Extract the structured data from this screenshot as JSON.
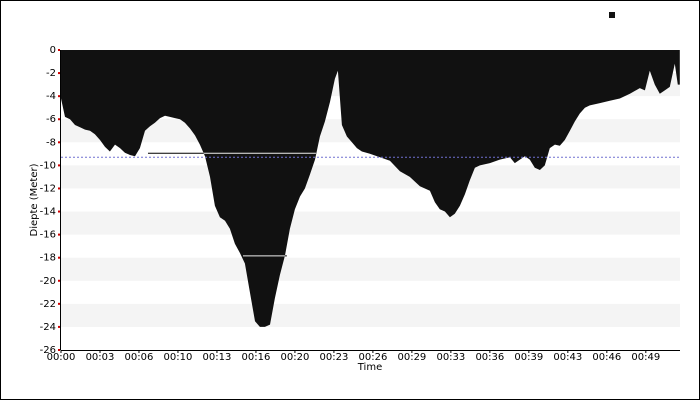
{
  "chart_data": {
    "type": "area",
    "x_label": "Time",
    "y_label": "Diepte (Meter)",
    "color": "#111111",
    "x": [
      0,
      0.33,
      0.75,
      1.17,
      1.58,
      2,
      2.42,
      2.83,
      3.25,
      3.67,
      4.08,
      4.5,
      4.92,
      5.33,
      5.75,
      6.17,
      6.58,
      7,
      7.42,
      7.83,
      8.25,
      8.67,
      9.08,
      9.5,
      9.92,
      10.33,
      10.75,
      11.17,
      11.58,
      12,
      12.42,
      12.83,
      13.25,
      13.67,
      14.08,
      14.5,
      14.92,
      15.33,
      15.75,
      16.17,
      16.58,
      17,
      17.42,
      17.83,
      18.25,
      18.67,
      19.08,
      19.5,
      19.92,
      20.33,
      20.75,
      21.17,
      21.58,
      22,
      22.42,
      22.83,
      23.08,
      23.42,
      23.83,
      24.25,
      24.67,
      25.08,
      25.75,
      26.58,
      27.42,
      28.25,
      29.08,
      29.92,
      30.75,
      31.17,
      31.58,
      32,
      32.42,
      32.83,
      33.25,
      33.67,
      34.08,
      34.5,
      34.92,
      35.75,
      36.58,
      37.42,
      37.83,
      38.25,
      38.67,
      39.08,
      39.5,
      39.92,
      40.33,
      40.75,
      41.17,
      41.58,
      42,
      42.42,
      42.83,
      43.25,
      43.67,
      44.08,
      44.92,
      45.75,
      46.58,
      47.42,
      48.25,
      48.67,
      49.08,
      49.5,
      49.92,
      50.33,
      50.75,
      51.17,
      51.42,
      51.58
    ],
    "values": [
      -4.2,
      -5.8,
      -6.0,
      -6.5,
      -6.7,
      -6.9,
      -7.0,
      -7.3,
      -7.8,
      -8.4,
      -8.8,
      -8.2,
      -8.5,
      -8.9,
      -9.1,
      -9.2,
      -8.5,
      -7.0,
      -6.6,
      -6.3,
      -5.9,
      -5.7,
      -5.8,
      -5.9,
      -6.0,
      -6.3,
      -6.8,
      -7.4,
      -8.2,
      -9.2,
      -11,
      -13.5,
      -14.5,
      -14.8,
      -15.5,
      -16.8,
      -17.6,
      -18.5,
      -21,
      -23.5,
      -24,
      -24,
      -23.8,
      -21.5,
      -19.5,
      -17.8,
      -15.5,
      -13.8,
      -12.7,
      -12,
      -10.8,
      -9.5,
      -7.5,
      -6.2,
      -4.5,
      -2.5,
      -1.8,
      -6.5,
      -7.5,
      -8.0,
      -8.5,
      -8.8,
      -9.0,
      -9.3,
      -9.6,
      -10.5,
      -11.0,
      -11.8,
      -12.2,
      -13.2,
      -13.8,
      -14.0,
      -14.5,
      -14.2,
      -13.5,
      -12.5,
      -11.3,
      -10.2,
      -10.0,
      -9.8,
      -9.5,
      -9.3,
      -9.8,
      -9.5,
      -9.2,
      -9.5,
      -10.2,
      -10.4,
      -10.0,
      -8.5,
      -8.2,
      -8.3,
      -7.8,
      -7.0,
      -6.2,
      -5.5,
      -5.0,
      -4.8,
      -4.6,
      -4.4,
      -4.2,
      -3.8,
      -3.3,
      -3.5,
      -1.8,
      -3.0,
      -3.8,
      -3.5,
      -3.2,
      -1.2,
      -3.0,
      -3.0
    ],
    "xlim": [
      0,
      51.6
    ],
    "xticks": [
      {
        "value": 0,
        "label": "00:00"
      },
      {
        "value": 3.25,
        "label": "00:03"
      },
      {
        "value": 6.5,
        "label": "00:06"
      },
      {
        "value": 9.75,
        "label": "00:10"
      },
      {
        "value": 13,
        "label": "00:13"
      },
      {
        "value": 16.25,
        "label": "00:16"
      },
      {
        "value": 19.5,
        "label": "00:20"
      },
      {
        "value": 22.75,
        "label": "00:23"
      },
      {
        "value": 26,
        "label": "00:26"
      },
      {
        "value": 29.25,
        "label": "00:29"
      },
      {
        "value": 32.5,
        "label": "00:33"
      },
      {
        "value": 35.75,
        "label": "00:36"
      },
      {
        "value": 39,
        "label": "00:39"
      },
      {
        "value": 42.25,
        "label": "00:43"
      },
      {
        "value": 45.5,
        "label": "00:46"
      },
      {
        "value": 48.75,
        "label": "00:49"
      }
    ],
    "ylim": [
      0,
      -26
    ],
    "yticks": [
      0,
      -2,
      -4,
      -6,
      -8,
      -10,
      -12,
      -14,
      -16,
      -18,
      -20,
      -22,
      -24,
      -26
    ],
    "grid_bands": true,
    "reference_line": {
      "y": -9.3,
      "color": "#7070d0"
    },
    "segments": [
      {
        "y": -8.9,
        "x": [
          7.25,
          21.25
        ]
      },
      {
        "y": -17.8,
        "x": [
          15.17,
          18.83
        ]
      }
    ]
  }
}
